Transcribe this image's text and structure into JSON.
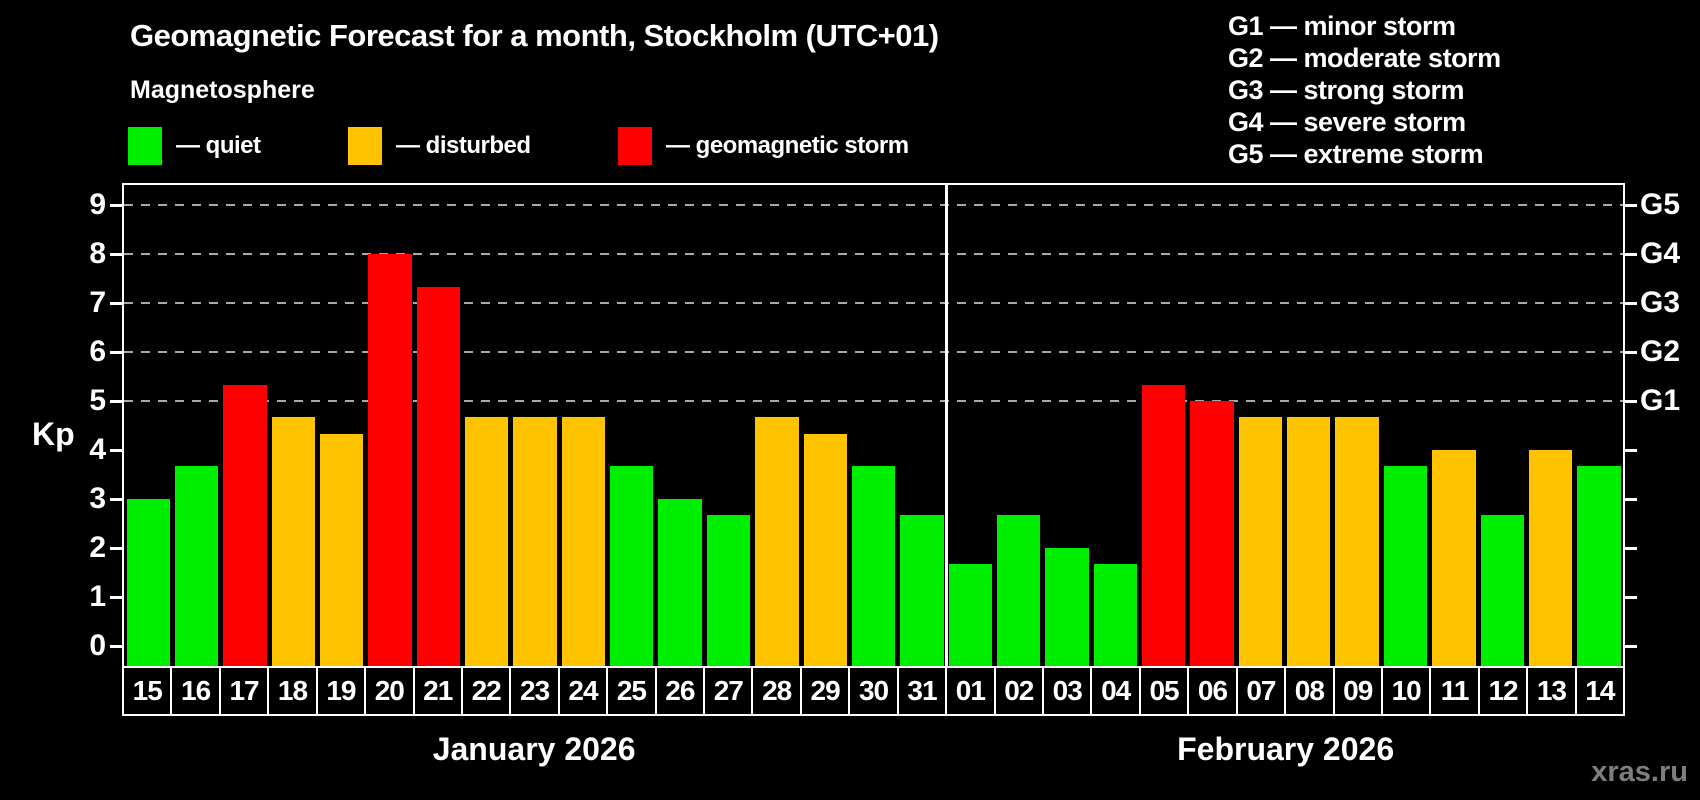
{
  "header": {
    "title": "Geomagnetic Forecast for a month, Stockholm (UTC+01)",
    "subtitle": "Magnetosphere"
  },
  "legend": {
    "items": [
      {
        "status": "quiet",
        "label": "— quiet",
        "color": "#00EE00",
        "x": 128
      },
      {
        "status": "disturbed",
        "label": "— disturbed",
        "color": "#FFC300",
        "x": 348
      },
      {
        "status": "storm",
        "label": "— geomagnetic storm",
        "color": "#FF0000",
        "x": 618
      }
    ]
  },
  "storm_scale_legend": {
    "lines": [
      "G1 — minor storm",
      "G2 — moderate storm",
      "G3 — strong storm",
      "G4 — severe storm",
      "G5 — extreme storm"
    ]
  },
  "watermark": "xras.ru",
  "chart_data": {
    "type": "bar",
    "title": "Geomagnetic Forecast for a month, Stockholm (UTC+01)",
    "ylabel": "Kp",
    "ylim": [
      -0.4,
      9.4
    ],
    "yticks": [
      0,
      1,
      2,
      3,
      4,
      5,
      6,
      7,
      8,
      9
    ],
    "gridlines_at_kp": [
      5,
      6,
      7,
      8,
      9
    ],
    "right_axis_labels": [
      {
        "label": "G1",
        "kp": 5
      },
      {
        "label": "G2",
        "kp": 6
      },
      {
        "label": "G3",
        "kp": 7
      },
      {
        "label": "G4",
        "kp": 8
      },
      {
        "label": "G5",
        "kp": 9
      }
    ],
    "status_colors": {
      "quiet": "#00EE00",
      "disturbed": "#FFC300",
      "storm": "#FF0000"
    },
    "months": [
      {
        "label": "January 2026",
        "num_days": 17
      },
      {
        "label": "February 2026",
        "num_days": 14
      }
    ],
    "bars": [
      {
        "day": "15",
        "kp": 3.0,
        "status": "quiet"
      },
      {
        "day": "16",
        "kp": 3.67,
        "status": "quiet"
      },
      {
        "day": "17",
        "kp": 5.33,
        "status": "storm"
      },
      {
        "day": "18",
        "kp": 4.67,
        "status": "disturbed"
      },
      {
        "day": "19",
        "kp": 4.33,
        "status": "disturbed"
      },
      {
        "day": "20",
        "kp": 8.0,
        "status": "storm"
      },
      {
        "day": "21",
        "kp": 7.33,
        "status": "storm"
      },
      {
        "day": "22",
        "kp": 4.67,
        "status": "disturbed"
      },
      {
        "day": "23",
        "kp": 4.67,
        "status": "disturbed"
      },
      {
        "day": "24",
        "kp": 4.67,
        "status": "disturbed"
      },
      {
        "day": "25",
        "kp": 3.67,
        "status": "quiet"
      },
      {
        "day": "26",
        "kp": 3.0,
        "status": "quiet"
      },
      {
        "day": "27",
        "kp": 2.67,
        "status": "quiet"
      },
      {
        "day": "28",
        "kp": 4.67,
        "status": "disturbed"
      },
      {
        "day": "29",
        "kp": 4.33,
        "status": "disturbed"
      },
      {
        "day": "30",
        "kp": 3.67,
        "status": "quiet"
      },
      {
        "day": "31",
        "kp": 2.67,
        "status": "quiet"
      },
      {
        "day": "01",
        "kp": 1.67,
        "status": "quiet"
      },
      {
        "day": "02",
        "kp": 2.67,
        "status": "quiet"
      },
      {
        "day": "03",
        "kp": 2.0,
        "status": "quiet"
      },
      {
        "day": "04",
        "kp": 1.67,
        "status": "quiet"
      },
      {
        "day": "05",
        "kp": 5.33,
        "status": "storm"
      },
      {
        "day": "06",
        "kp": 5.0,
        "status": "storm"
      },
      {
        "day": "07",
        "kp": 4.67,
        "status": "disturbed"
      },
      {
        "day": "08",
        "kp": 4.67,
        "status": "disturbed"
      },
      {
        "day": "09",
        "kp": 4.67,
        "status": "disturbed"
      },
      {
        "day": "10",
        "kp": 3.67,
        "status": "quiet"
      },
      {
        "day": "11",
        "kp": 4.0,
        "status": "disturbed"
      },
      {
        "day": "12",
        "kp": 2.67,
        "status": "quiet"
      },
      {
        "day": "13",
        "kp": 4.0,
        "status": "disturbed"
      },
      {
        "day": "14",
        "kp": 3.67,
        "status": "quiet"
      }
    ]
  }
}
